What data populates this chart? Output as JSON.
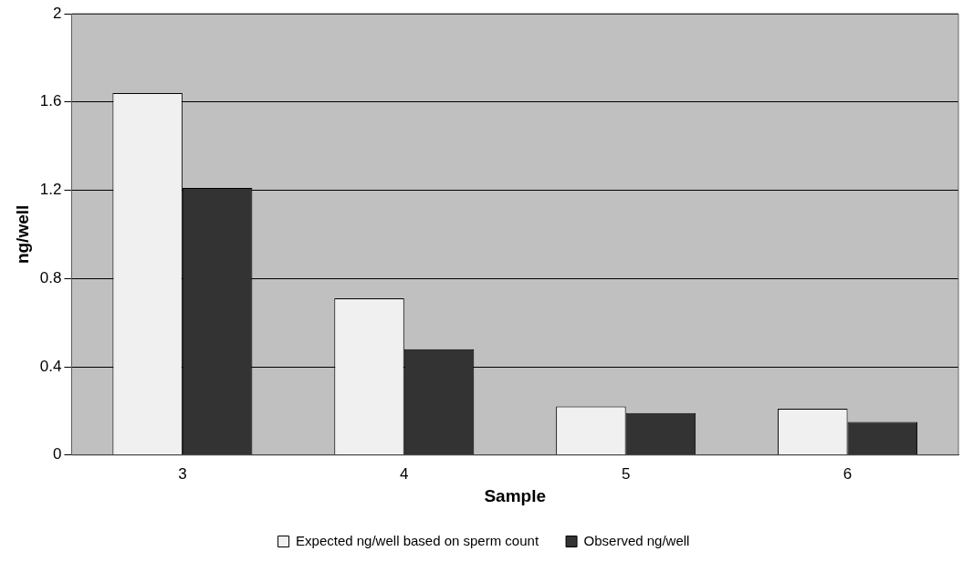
{
  "chart_data": {
    "type": "bar",
    "xlabel": "Sample",
    "ylabel": "ng/well",
    "categories": [
      "3",
      "4",
      "5",
      "6"
    ],
    "series": [
      {
        "name": "Expected ng/well based on sperm count",
        "color": "#f0f0f0",
        "values": [
          1.64,
          0.71,
          0.22,
          0.21
        ]
      },
      {
        "name": "Observed ng/well",
        "color": "#333333",
        "values": [
          1.21,
          0.48,
          0.19,
          0.15
        ]
      }
    ],
    "ylim": [
      0,
      2
    ],
    "yticks": [
      0,
      0.4,
      0.8,
      1.2,
      1.6,
      2
    ],
    "grid": "y",
    "legend": "bottom"
  }
}
